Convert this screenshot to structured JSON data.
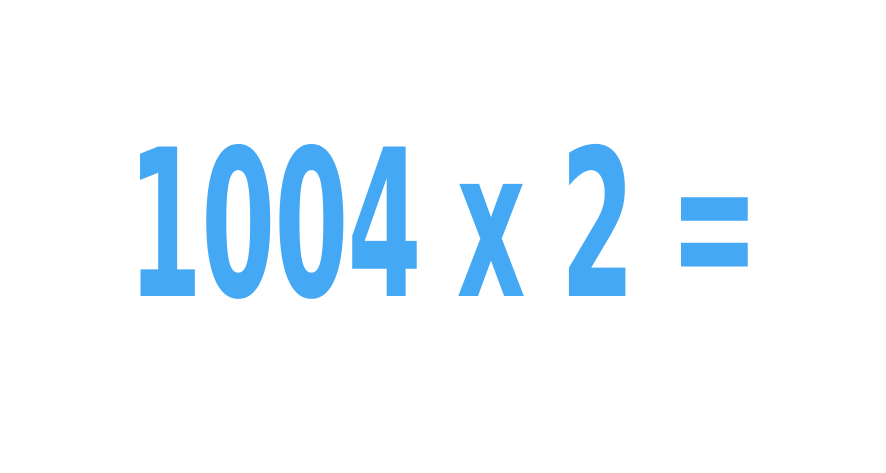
{
  "equation": {
    "text": "1004 x 2 =",
    "color": "#45a8f5"
  }
}
